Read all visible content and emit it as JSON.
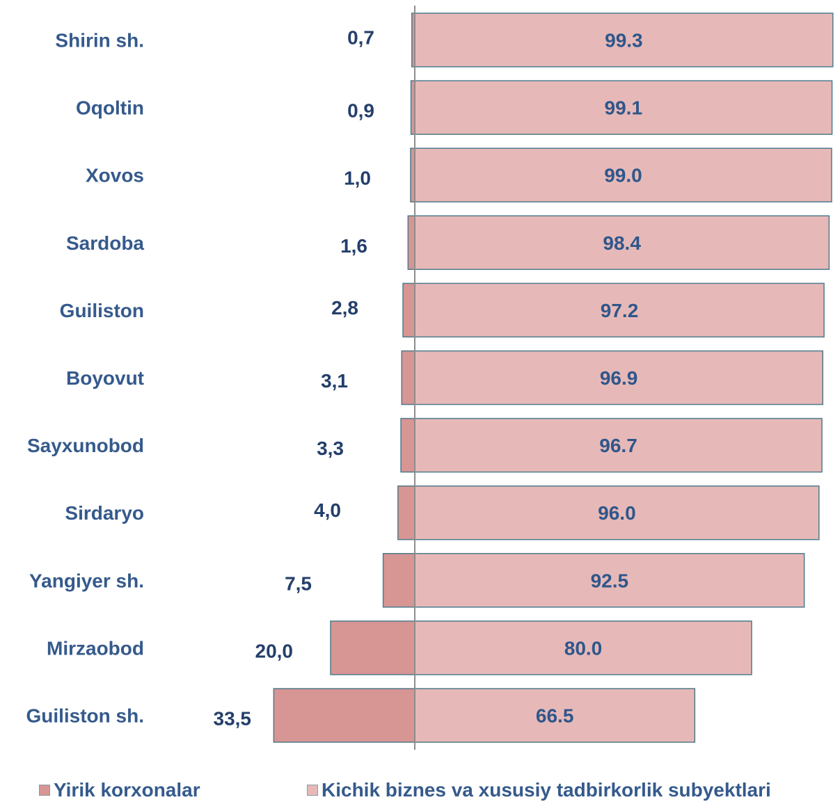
{
  "chart_data": {
    "type": "bar",
    "orientation": "horizontal",
    "stacked": true,
    "categories": [
      "Shirin sh.",
      "Oqoltin",
      "Xovos",
      "Sardoba",
      "Guiliston ",
      "Boyovut",
      "Sayxunobod",
      "Sirdaryo",
      "Yangiyer sh.",
      "Mirzaobod",
      "Guiliston sh."
    ],
    "series": [
      {
        "name": "Yirik korxonalar",
        "values": [
          0.7,
          0.9,
          1.0,
          1.6,
          2.8,
          3.1,
          3.3,
          4.0,
          7.5,
          20.0,
          33.5
        ],
        "labels": [
          "0,7",
          "0,9",
          "1,0",
          "1,6",
          "2,8",
          "3,1",
          "3,3",
          "4,0",
          "7,5",
          "20,0",
          "33,5"
        ],
        "color": "#d79594"
      },
      {
        "name": "Kichik biznes va xususiy tadbirkorlik subyektlari",
        "values": [
          99.3,
          99.1,
          99.0,
          98.4,
          97.2,
          96.9,
          96.7,
          96.0,
          92.5,
          80.0,
          66.5
        ],
        "labels": [
          "99.3",
          "99.1",
          "99.0",
          "98.4",
          "97.2",
          "96.9",
          "96.7",
          "96.0",
          "92.5",
          "80.0",
          "66.5"
        ],
        "color": "#e6b9b8"
      }
    ],
    "legend_position": "bottom",
    "grid": false
  },
  "colors": {
    "category_text": "#355a8c",
    "value_text": "#243f6b",
    "bar_border": "#4d7b8c",
    "axis": "#8c8c8c"
  }
}
